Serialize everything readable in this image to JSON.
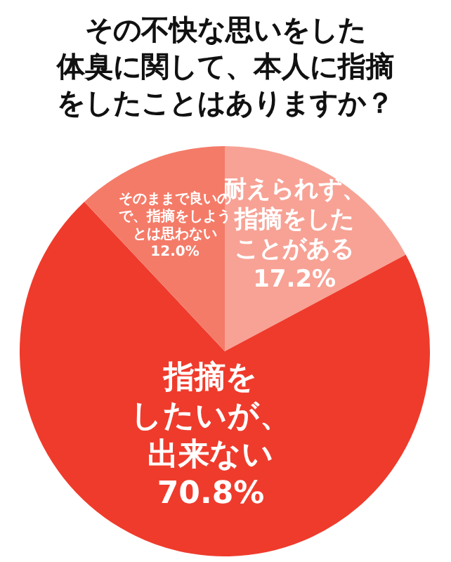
{
  "chart_data": {
    "type": "pie",
    "title": "その不快な思いをした体臭に関して、本人に指摘をしたことはありますか？",
    "categories": [
      "耐えられず、指摘をしたことがある",
      "指摘をしたいが、出来ない",
      "そのままで良いので、指摘をしようとは思わない"
    ],
    "values": [
      17.2,
      70.8,
      12.0
    ],
    "colors": [
      "#f7a295",
      "#ef3b2c",
      "#f47b68"
    ],
    "value_labels": [
      "17.2%",
      "70.8%",
      "12.0%"
    ]
  }
}
